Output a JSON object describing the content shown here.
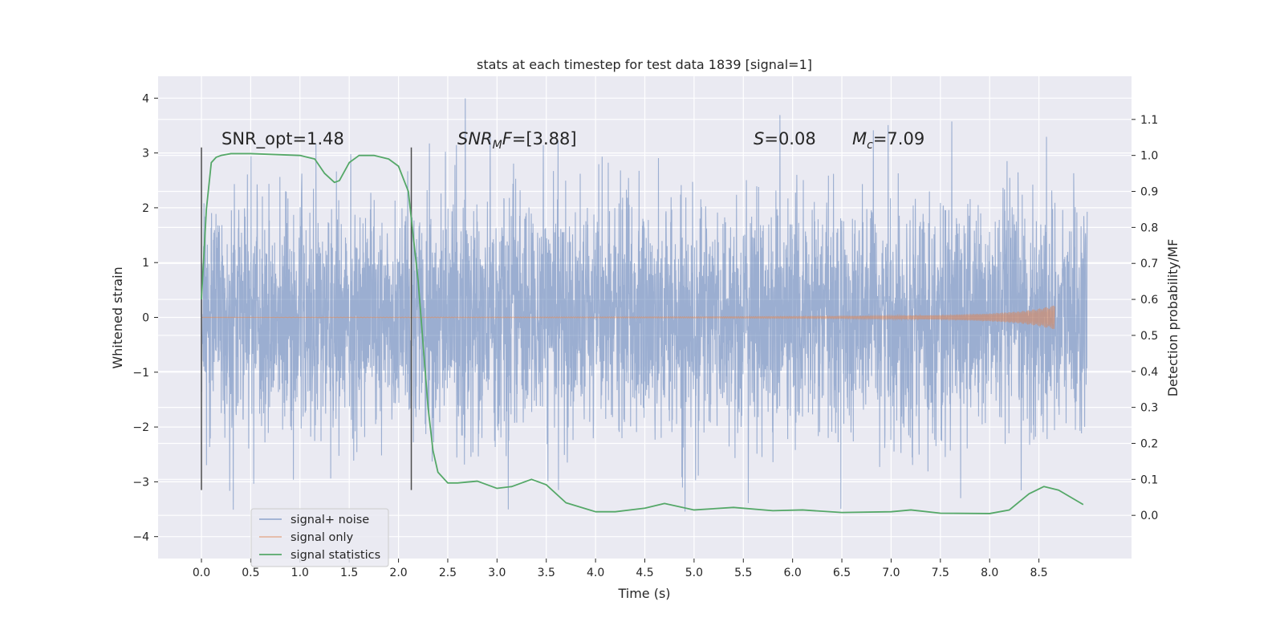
{
  "chart_data": {
    "type": "line",
    "title": "stats at each timestep for test data 1839 [signal=1]",
    "xlabel": "Time (s)",
    "ylabel": "Whitened strain",
    "y2label": "Detection probability/MF",
    "xlim": [
      -0.44,
      9.44
    ],
    "ylim": [
      -4.4,
      4.4
    ],
    "y2lim": [
      -0.12,
      1.22
    ],
    "x_ticks": [
      "0.0",
      "0.5",
      "1.0",
      "1.5",
      "2.0",
      "2.5",
      "3.0",
      "3.5",
      "4.0",
      "4.5",
      "5.0",
      "5.5",
      "6.0",
      "6.5",
      "7.0",
      "7.5",
      "8.0",
      "8.5"
    ],
    "y_ticks": [
      "−4",
      "−3",
      "−2",
      "−1",
      "0",
      "1",
      "2",
      "3",
      "4"
    ],
    "y2_ticks": [
      "0.0",
      "0.1",
      "0.2",
      "0.3",
      "0.4",
      "0.5",
      "0.6",
      "0.7",
      "0.8",
      "0.9",
      "1.0",
      "1.1"
    ],
    "grid": true,
    "legend_position": "lower-left",
    "vlines": [
      0.0,
      2.13
    ],
    "annotations": [
      {
        "text": "SNR_opt=1.48",
        "x": 0.2
      },
      {
        "text": "SNRMF=[3.88]",
        "x": 2.6
      },
      {
        "text": "S=0.08",
        "x": 5.6
      },
      {
        "text": "Mc=7.09",
        "x": 6.6
      }
    ],
    "series": [
      {
        "name": "signal+ noise",
        "color": "#4c72b0",
        "x_range": [
          0.0,
          8.99
        ],
        "envelope_std": 1.0,
        "peak_max": 4.0,
        "peak_min": -4.0
      },
      {
        "name": "signal only",
        "color": "#dd8452",
        "x": [
          0.0,
          3.0,
          5.0,
          6.5,
          7.5,
          8.0,
          8.3,
          8.5,
          8.6,
          8.66
        ],
        "amplitude": [
          0.0,
          0.005,
          0.01,
          0.02,
          0.04,
          0.07,
          0.11,
          0.16,
          0.2,
          0.22
        ]
      },
      {
        "name": "signal statistics",
        "color": "#55a868",
        "x": [
          0.0,
          0.05,
          0.1,
          0.15,
          0.2,
          0.3,
          0.5,
          1.0,
          1.15,
          1.25,
          1.35,
          1.4,
          1.5,
          1.6,
          1.75,
          1.9,
          2.0,
          2.1,
          2.2,
          2.3,
          2.35,
          2.4,
          2.5,
          2.6,
          2.8,
          3.0,
          3.15,
          3.35,
          3.5,
          3.7,
          4.0,
          4.2,
          4.5,
          4.7,
          5.0,
          5.4,
          5.8,
          6.1,
          6.5,
          7.0,
          7.2,
          7.5,
          8.0,
          8.2,
          8.4,
          8.55,
          8.7,
          8.95
        ],
        "y": [
          0.6,
          0.85,
          0.98,
          0.995,
          1.0,
          1.005,
          1.005,
          1.0,
          0.99,
          0.95,
          0.925,
          0.93,
          0.98,
          1.0,
          1.0,
          0.99,
          0.97,
          0.9,
          0.65,
          0.3,
          0.18,
          0.12,
          0.09,
          0.09,
          0.095,
          0.075,
          0.08,
          0.1,
          0.085,
          0.035,
          0.01,
          0.01,
          0.02,
          0.033,
          0.015,
          0.022,
          0.013,
          0.015,
          0.008,
          0.01,
          0.015,
          0.006,
          0.005,
          0.015,
          0.06,
          0.08,
          0.07,
          0.03
        ]
      }
    ]
  }
}
